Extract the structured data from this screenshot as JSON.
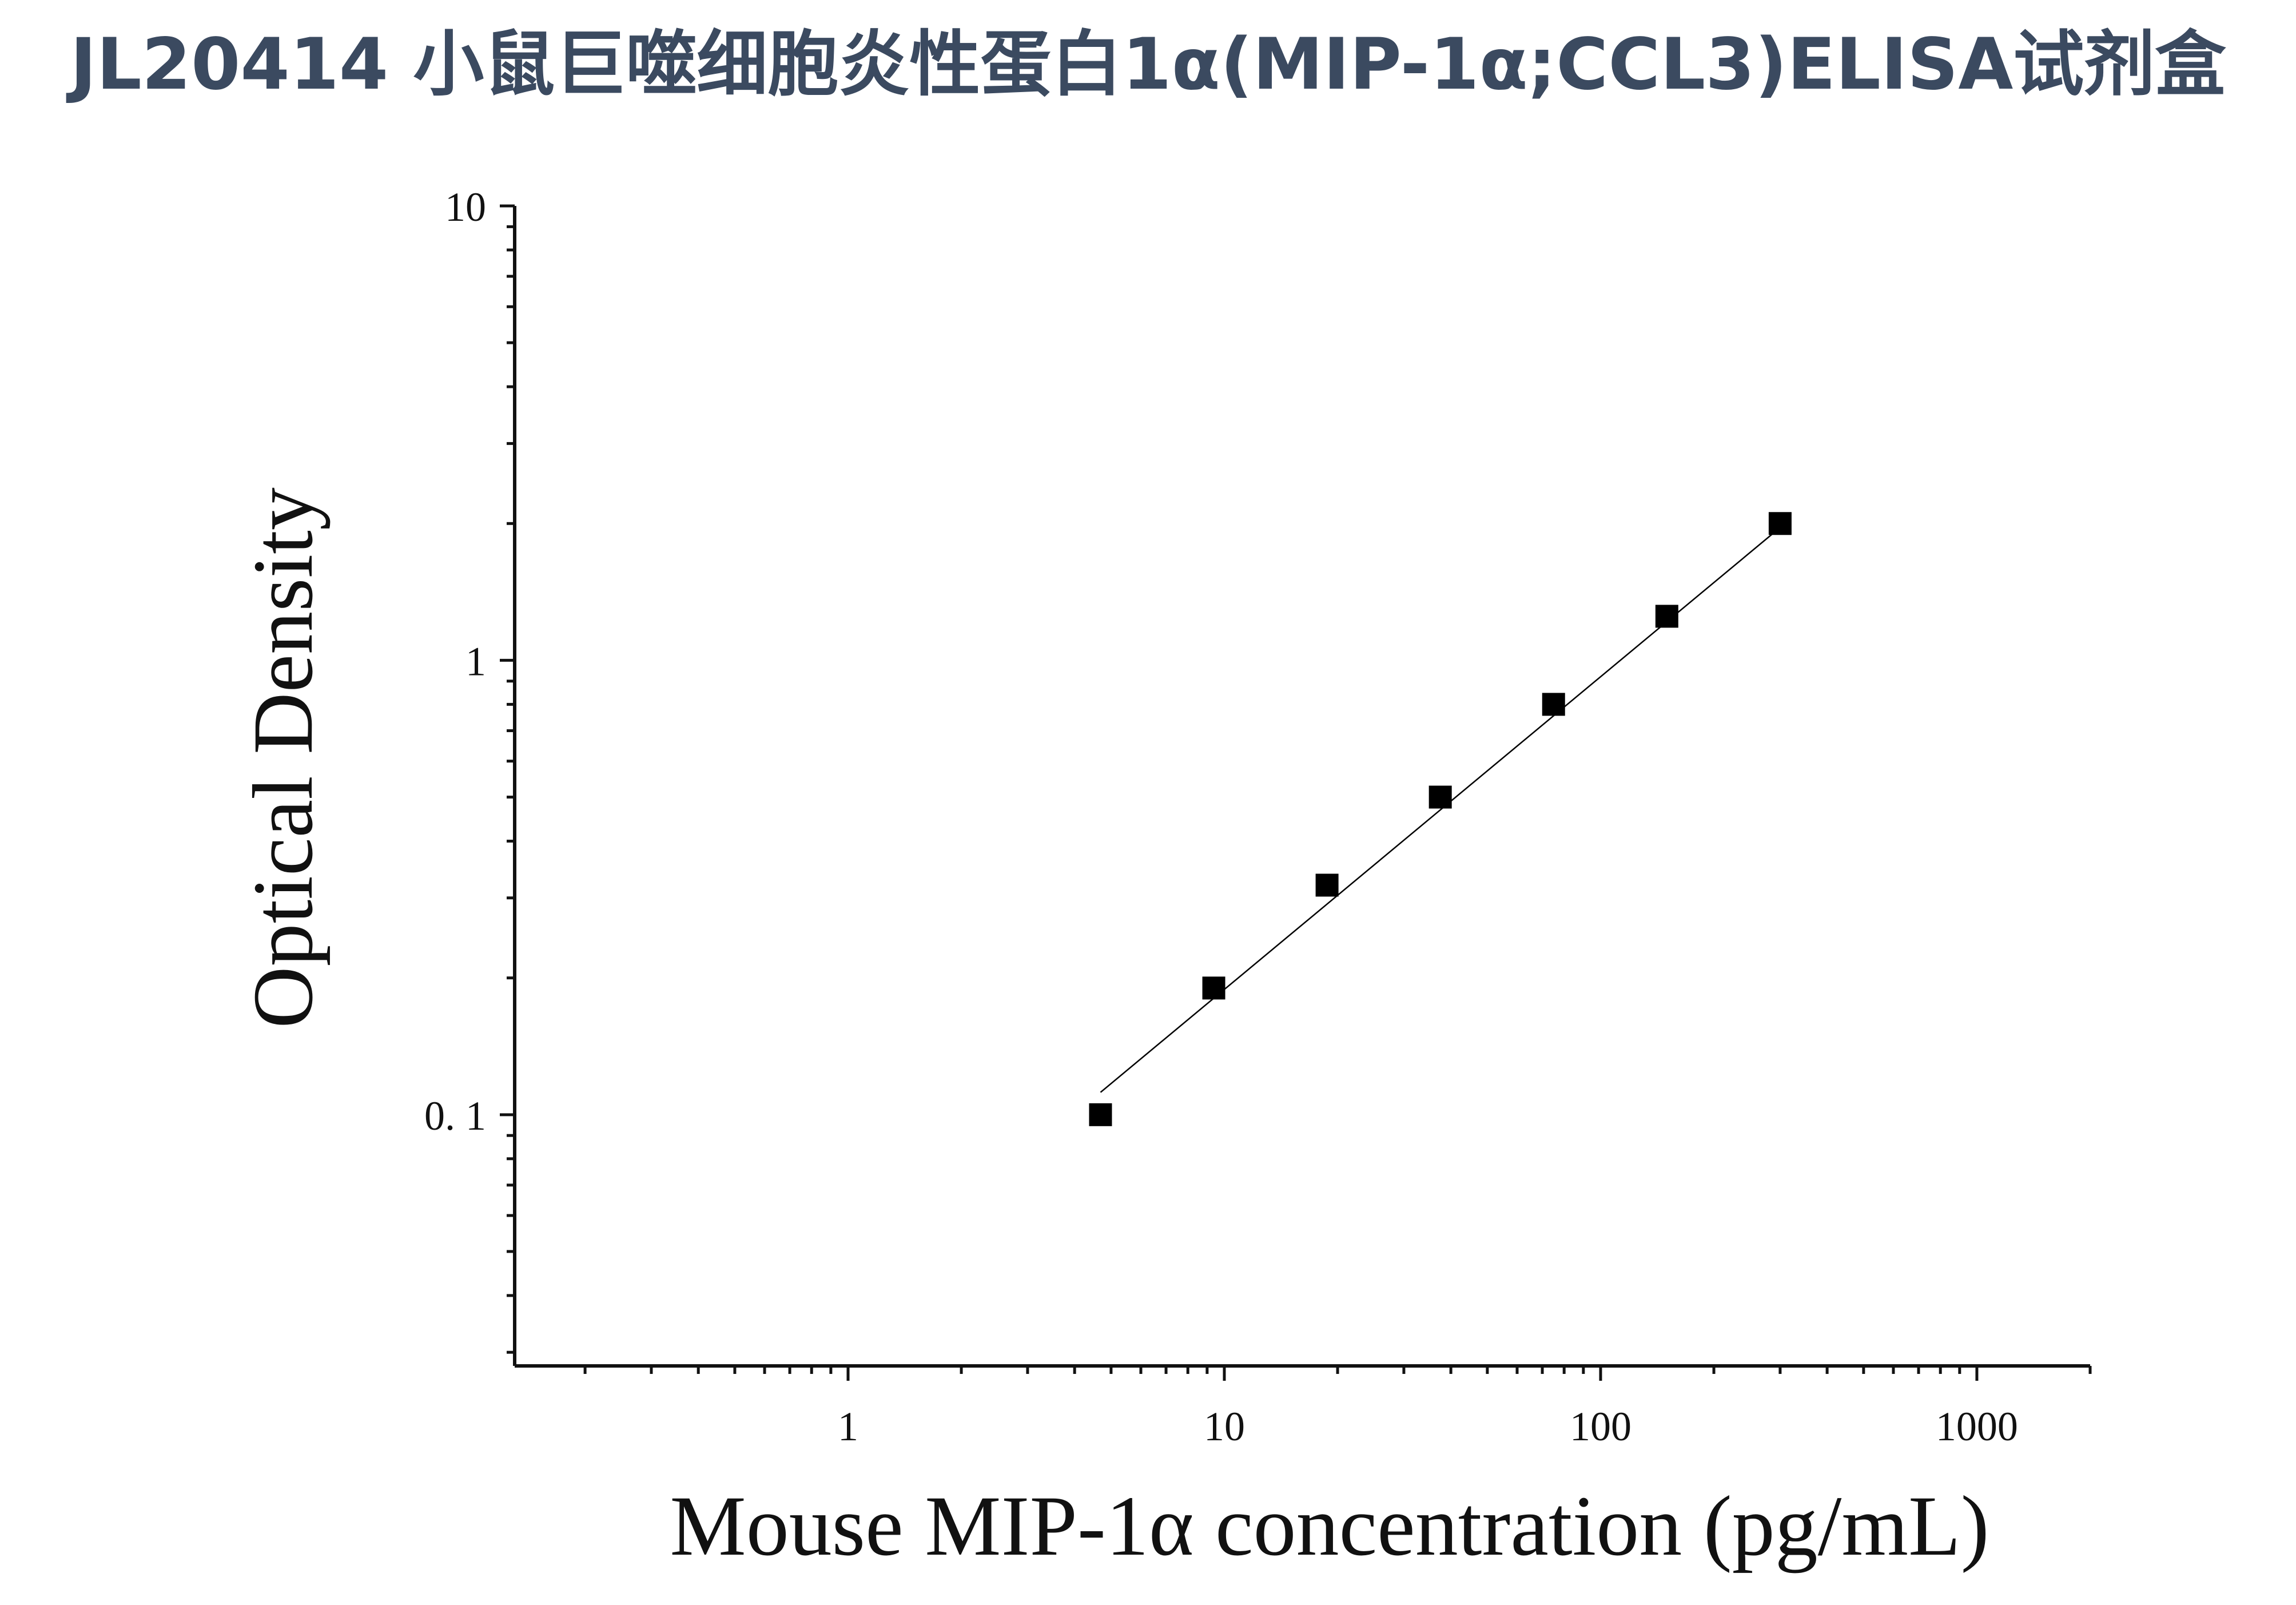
{
  "title": "JL20414 小鼠巨噬细胞炎性蛋白1α(MIP-1α;CCL3)ELISA试剂盒",
  "chart_data": {
    "type": "scatter",
    "title": "JL20414 小鼠巨噬细胞炎性蛋白1α(MIP-1α;CCL3)ELISA试剂盒",
    "xlabel": "Mouse MIP-1α concentration (pg/mL)",
    "ylabel": "Optical Density",
    "x_scale": "log",
    "y_scale": "log",
    "xlim": [
      0.13,
      2000
    ],
    "ylim": [
      0.028,
      10
    ],
    "x_ticks": [
      1,
      10,
      100,
      1000
    ],
    "x_tick_labels": [
      "1",
      "10",
      "100",
      "1000"
    ],
    "y_ticks": [
      0.1,
      1,
      10
    ],
    "y_tick_labels": [
      "0. 1",
      "1",
      "10"
    ],
    "grid": false,
    "legend": "none",
    "series": [
      {
        "x": [
          4.6875,
          9.375,
          18.75,
          37.5,
          75,
          150,
          300
        ],
        "y": [
          0.1,
          0.19,
          0.32,
          0.5,
          0.8,
          1.25,
          2.0
        ],
        "marker": "square",
        "color": "#000000"
      }
    ],
    "fit_line": {
      "x": [
        4.6875,
        300
      ],
      "y": [
        0.112,
        1.96
      ],
      "color": "#000000"
    }
  }
}
